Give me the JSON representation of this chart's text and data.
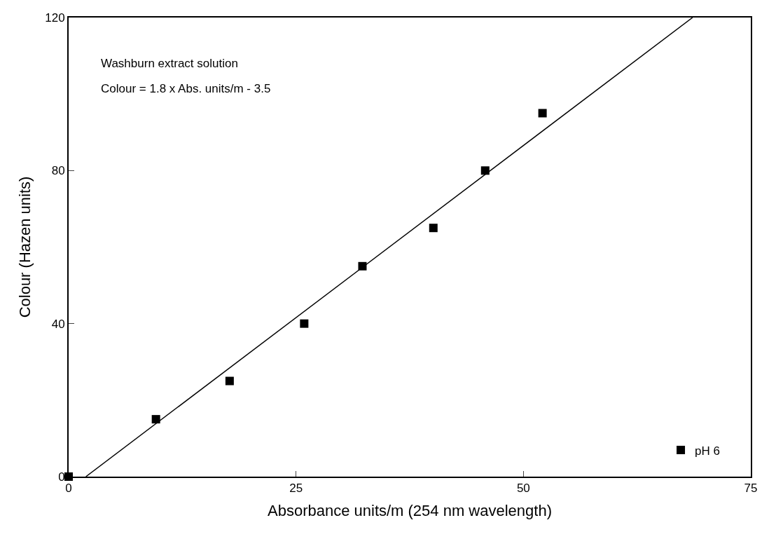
{
  "chart_data": {
    "type": "scatter",
    "xlabel": "Absorbance units/m (254 nm wavelength)",
    "ylabel": "Colour (Hazen units)",
    "annotations": [
      "Washburn extract solution",
      "Colour = 1.8 x Abs. units/m - 3.5"
    ],
    "series": [
      {
        "name": "pH 6",
        "color": "#000000",
        "x": [
          0,
          9.6,
          17.7,
          25.9,
          32.3,
          40.1,
          45.8,
          52.1
        ],
        "values": [
          0,
          15,
          25,
          40,
          55,
          65,
          80,
          95
        ]
      },
      {
        "type": "line",
        "marker": "none",
        "color": "#000000",
        "x": [
          1.9,
          68.6
        ],
        "values": [
          0,
          120
        ]
      }
    ],
    "xlim": [
      0,
      75
    ],
    "xticks": [
      0,
      25,
      50,
      75
    ],
    "ylim": [
      0,
      120
    ],
    "yticks": [
      0,
      40,
      80,
      120
    ],
    "marker": "square",
    "legend": "bottom right"
  }
}
